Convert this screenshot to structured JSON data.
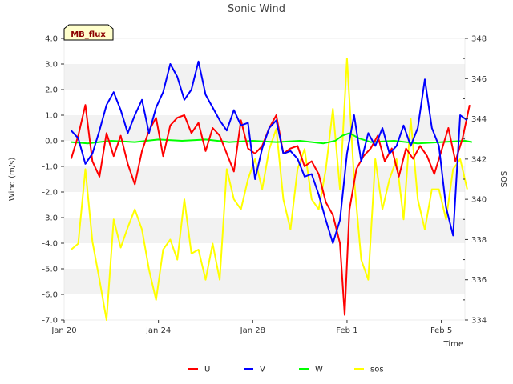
{
  "chart_data": {
    "type": "line",
    "title": "Sonic Wind",
    "badge": "MB_flux",
    "xlabel": "Time",
    "ylabel_left": "Wind (m/s)",
    "ylabel_right": "SOS",
    "xlim_days": [
      0,
      17
    ],
    "ylim_left": [
      -7.0,
      4.0
    ],
    "ylim_right": [
      334,
      348
    ],
    "x_ticks": [
      {
        "label": "Jan 20",
        "day": 0
      },
      {
        "label": "Jan 24",
        "day": 4
      },
      {
        "label": "Jan 28",
        "day": 8
      },
      {
        "label": "Feb 1",
        "day": 12
      },
      {
        "label": "Feb 5",
        "day": 16
      }
    ],
    "y_ticks_left": [
      "4.0",
      "3.0",
      "2.0",
      "1.0",
      "0.0",
      "-1.0",
      "-2.0",
      "-3.0",
      "-4.0",
      "-5.0",
      "-6.0",
      "-7.0"
    ],
    "y_tick_values_left": [
      4,
      3,
      2,
      1,
      0,
      -1,
      -2,
      -3,
      -4,
      -5,
      -6,
      -7
    ],
    "y_ticks_right": [
      "348",
      "346",
      "344",
      "342",
      "340",
      "338",
      "336",
      "334"
    ],
    "y_tick_values_right": [
      348,
      346,
      344,
      342,
      340,
      338,
      336,
      334
    ],
    "series": [
      {
        "name": "U",
        "color": "#ff0000",
        "axis": "left",
        "x": [
          0.3,
          0.6,
          0.9,
          1.2,
          1.5,
          1.8,
          2.1,
          2.4,
          2.7,
          3.0,
          3.3,
          3.6,
          3.9,
          4.2,
          4.5,
          4.8,
          5.1,
          5.4,
          5.7,
          6.0,
          6.3,
          6.6,
          6.9,
          7.2,
          7.5,
          7.8,
          8.1,
          8.4,
          8.7,
          9.0,
          9.3,
          9.6,
          9.9,
          10.2,
          10.5,
          10.8,
          11.1,
          11.4,
          11.7,
          11.9,
          12.1,
          12.4,
          12.7,
          13.0,
          13.3,
          13.6,
          13.9,
          14.2,
          14.5,
          14.8,
          15.1,
          15.4,
          15.7,
          16.0,
          16.3,
          16.6,
          16.9,
          17.2
        ],
        "y": [
          -0.7,
          0.2,
          1.4,
          -0.8,
          -1.4,
          0.3,
          -0.6,
          0.2,
          -0.9,
          -1.7,
          -0.4,
          0.4,
          0.9,
          -0.6,
          0.6,
          0.9,
          1.0,
          0.3,
          0.7,
          -0.4,
          0.5,
          0.2,
          -0.5,
          -1.2,
          0.8,
          -0.3,
          -0.5,
          -0.2,
          0.5,
          1.0,
          -0.5,
          -0.3,
          -0.2,
          -1.0,
          -0.8,
          -1.3,
          -2.4,
          -2.9,
          -4.0,
          -6.8,
          -2.7,
          -1.1,
          -0.6,
          -0.3,
          0.2,
          -0.8,
          -0.3,
          -1.4,
          -0.3,
          -0.7,
          -0.2,
          -0.6,
          -1.3,
          -0.4,
          0.5,
          -0.8,
          0.1,
          1.4
        ]
      },
      {
        "name": "V",
        "color": "#0000ff",
        "axis": "left",
        "x": [
          0.3,
          0.6,
          0.9,
          1.2,
          1.5,
          1.8,
          2.1,
          2.4,
          2.7,
          3.0,
          3.3,
          3.6,
          3.9,
          4.2,
          4.5,
          4.8,
          5.1,
          5.4,
          5.7,
          6.0,
          6.3,
          6.6,
          6.9,
          7.2,
          7.5,
          7.8,
          8.1,
          8.4,
          8.7,
          9.0,
          9.3,
          9.6,
          9.9,
          10.2,
          10.5,
          10.8,
          11.1,
          11.4,
          11.7,
          12.0,
          12.3,
          12.6,
          12.9,
          13.2,
          13.5,
          13.8,
          14.1,
          14.4,
          14.7,
          15.0,
          15.3,
          15.6,
          15.9,
          16.2,
          16.5,
          16.8,
          17.1
        ],
        "y": [
          0.4,
          0.1,
          -0.9,
          -0.5,
          0.4,
          1.4,
          1.9,
          1.2,
          0.3,
          1.0,
          1.6,
          0.3,
          1.3,
          1.9,
          3.0,
          2.5,
          1.6,
          2.0,
          3.1,
          1.8,
          1.3,
          0.8,
          0.4,
          1.2,
          0.6,
          0.7,
          -1.5,
          -0.3,
          0.5,
          0.8,
          -0.5,
          -0.4,
          -0.7,
          -1.4,
          -1.3,
          -2.1,
          -3.1,
          -4.0,
          -3.1,
          -0.5,
          1.0,
          -0.8,
          0.3,
          -0.2,
          0.5,
          -0.5,
          -0.2,
          0.6,
          -0.2,
          0.5,
          2.4,
          0.5,
          -0.2,
          -2.6,
          -3.7,
          1.0,
          0.8
        ]
      },
      {
        "name": "W",
        "color": "#00ff00",
        "axis": "left",
        "x": [
          0.3,
          1.0,
          2.0,
          3.0,
          4.0,
          5.0,
          6.0,
          7.0,
          8.0,
          9.0,
          10.0,
          11.0,
          11.5,
          11.8,
          12.1,
          12.5,
          13.0,
          14.0,
          15.0,
          16.0,
          17.0,
          17.3
        ],
        "y": [
          -0.05,
          -0.1,
          0.0,
          -0.05,
          0.05,
          0.0,
          0.05,
          -0.05,
          0.0,
          -0.05,
          0.0,
          -0.1,
          0.0,
          0.2,
          0.3,
          0.1,
          -0.05,
          0.0,
          -0.1,
          -0.05,
          0.0,
          -0.05
        ]
      },
      {
        "name": "sos",
        "color": "#ffff00",
        "axis": "right",
        "x": [
          0.3,
          0.6,
          0.9,
          1.2,
          1.5,
          1.8,
          2.1,
          2.4,
          2.7,
          3.0,
          3.3,
          3.6,
          3.9,
          4.2,
          4.5,
          4.8,
          5.1,
          5.4,
          5.7,
          6.0,
          6.3,
          6.6,
          6.9,
          7.2,
          7.5,
          7.8,
          8.1,
          8.4,
          8.7,
          9.0,
          9.3,
          9.6,
          9.9,
          10.2,
          10.5,
          10.8,
          11.1,
          11.4,
          11.7,
          12.0,
          12.3,
          12.6,
          12.9,
          13.2,
          13.5,
          13.8,
          14.1,
          14.4,
          14.7,
          15.0,
          15.3,
          15.6,
          15.9,
          16.2,
          16.5,
          16.8,
          17.1
        ],
        "y": [
          337.5,
          337.8,
          341.5,
          337.9,
          336.0,
          334.0,
          339.0,
          337.6,
          338.6,
          339.5,
          338.5,
          336.5,
          335.0,
          337.5,
          338.0,
          337.0,
          340.0,
          337.3,
          337.5,
          336.0,
          337.8,
          336.0,
          341.5,
          340.0,
          339.5,
          341.0,
          342.0,
          340.5,
          342.5,
          343.5,
          340.0,
          338.5,
          341.5,
          342.5,
          340.0,
          339.5,
          341.5,
          344.5,
          340.5,
          347.0,
          341.0,
          337.0,
          336.0,
          342.0,
          339.5,
          341.0,
          342.0,
          339.0,
          344.0,
          340.0,
          338.5,
          340.5,
          340.5,
          339.0,
          341.5,
          342.0,
          340.5
        ]
      }
    ],
    "legend": [
      "U",
      "V",
      "W",
      "sos"
    ],
    "legend_position": "bottom-center",
    "grid": "alternating horizontal bands"
  }
}
